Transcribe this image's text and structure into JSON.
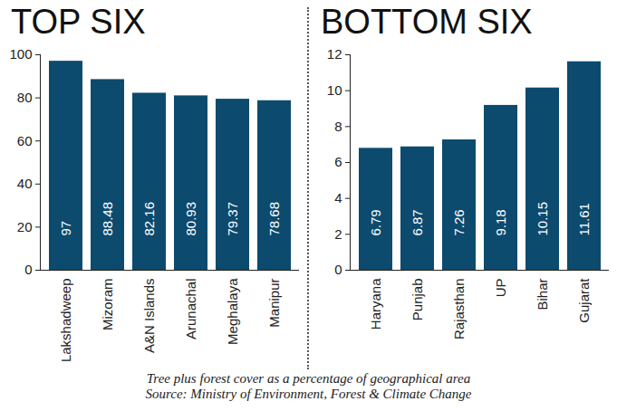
{
  "chart_data": [
    {
      "type": "bar",
      "title": "TOP SIX",
      "categories": [
        "Lakshadweep",
        "Mizoram",
        "A&N Islands",
        "Arunachal",
        "Meghalaya",
        "Manipur"
      ],
      "values": [
        97,
        88.48,
        82.16,
        80.93,
        79.37,
        78.68
      ],
      "color": "#0c4a6e",
      "ylim": [
        0,
        100
      ],
      "yticks": [
        0,
        20,
        40,
        60,
        80,
        100
      ],
      "grid": false,
      "data_labels": true
    },
    {
      "type": "bar",
      "title": "BOTTOM SIX",
      "categories": [
        "Haryana",
        "Punjab",
        "Rajasthan",
        "UP",
        "Bihar",
        "Gujarat"
      ],
      "values": [
        6.79,
        6.87,
        7.26,
        9.18,
        10.15,
        11.61
      ],
      "color": "#0c4a6e",
      "ylim": [
        0,
        12
      ],
      "yticks": [
        0,
        2,
        4,
        6,
        8,
        10,
        12
      ],
      "grid": false,
      "data_labels": true
    }
  ],
  "caption": "Tree plus forest cover as a percentage of  geographical area",
  "source": "Source: Ministry of Environment, Forest & Climate Change"
}
